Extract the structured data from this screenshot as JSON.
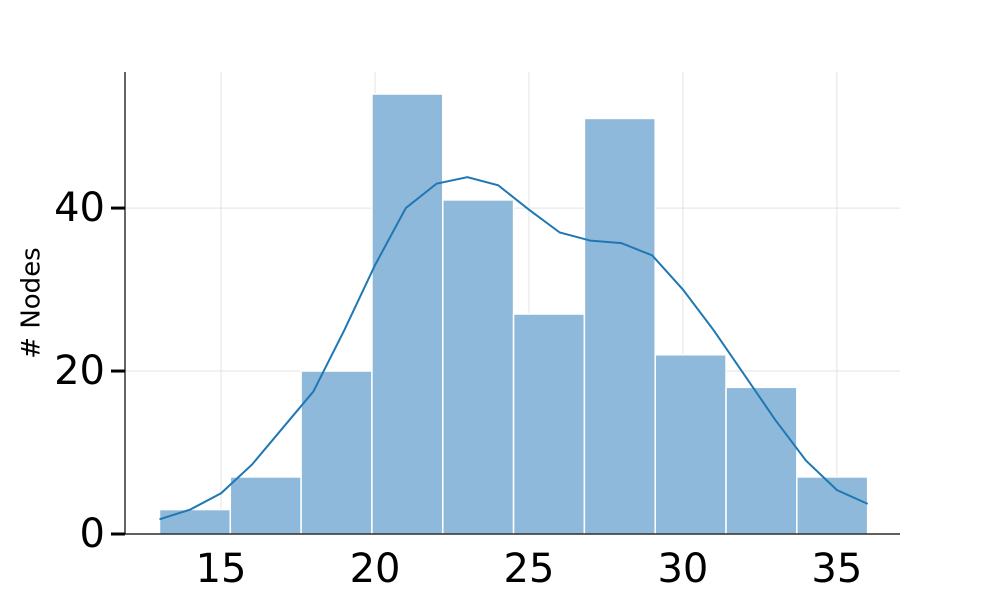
{
  "chart_data": {
    "type": "histogram",
    "ylabel": "# Nodes",
    "bins": [
      13,
      15.3,
      17.6,
      19.9,
      22.2,
      24.5,
      26.8,
      29.1,
      31.4,
      33.7,
      36
    ],
    "values": [
      3,
      7,
      20,
      54,
      41,
      27,
      51,
      22,
      18,
      7
    ],
    "color": "#8fb9da",
    "kde": {
      "color": "#1f77b4",
      "x": [
        13,
        14,
        15,
        16,
        17,
        18,
        19,
        20,
        21,
        22,
        23,
        24,
        25,
        26,
        27,
        28,
        29,
        30,
        31,
        32,
        33,
        34,
        35,
        36
      ],
      "values": [
        1.8,
        3,
        5,
        8.5,
        13,
        17.5,
        25,
        33,
        40,
        43,
        43.8,
        42.8,
        39.8,
        37,
        36,
        35.7,
        34.2,
        30,
        25,
        19.5,
        14,
        9,
        5.4,
        3.7
      ]
    },
    "xlim": [
      11.88,
      37.05
    ],
    "ylim": [
      0,
      56.7
    ],
    "xticks": [
      15,
      20,
      25,
      30,
      35
    ],
    "yticks": [
      0,
      20,
      40
    ],
    "grid": true
  }
}
